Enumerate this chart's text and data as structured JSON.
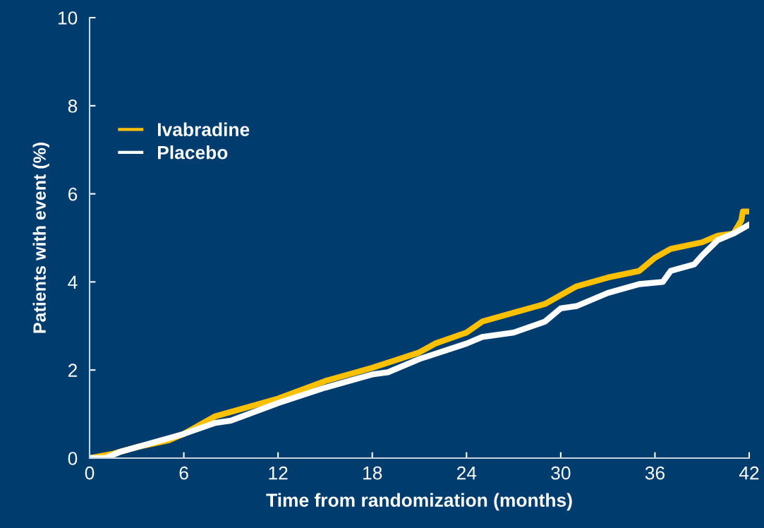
{
  "chart_data": {
    "type": "line",
    "xlabel": "Time from randomization (months)",
    "ylabel": "Patients with event (%)",
    "xlim": [
      0,
      42
    ],
    "xticks": [
      0,
      6,
      12,
      18,
      24,
      30,
      36,
      42
    ],
    "ylim": [
      0,
      10
    ],
    "yticks": [
      0,
      2,
      4,
      6,
      8,
      10
    ],
    "grid": false,
    "legend": "top left",
    "series": [
      {
        "name": "Ivabradine",
        "color": "#ffc000",
        "x": [
          0,
          1.5,
          3,
          5,
          6,
          8,
          9,
          12,
          15,
          18,
          21,
          22,
          24,
          25,
          27,
          29,
          30,
          31,
          33,
          35,
          36,
          37,
          39,
          40,
          41,
          41.5,
          41.6,
          42
        ],
        "values": [
          0,
          0.1,
          0.25,
          0.4,
          0.55,
          0.95,
          1.05,
          1.35,
          1.75,
          2.05,
          2.4,
          2.6,
          2.85,
          3.1,
          3.3,
          3.5,
          3.7,
          3.9,
          4.1,
          4.25,
          4.55,
          4.75,
          4.9,
          5.05,
          5.1,
          5.4,
          5.6,
          5.6
        ]
      },
      {
        "name": "Placebo",
        "color": "#ffffff",
        "x": [
          0,
          1,
          2,
          4,
          6,
          8,
          9,
          12,
          15,
          18,
          19,
          21,
          24,
          25,
          27,
          29,
          30,
          31,
          33,
          35,
          36.5,
          37,
          38.5,
          39,
          40,
          41,
          42
        ],
        "values": [
          0,
          0,
          0.15,
          0.35,
          0.55,
          0.8,
          0.85,
          1.25,
          1.6,
          1.9,
          1.95,
          2.25,
          2.6,
          2.75,
          2.85,
          3.1,
          3.4,
          3.45,
          3.75,
          3.95,
          4.0,
          4.25,
          4.4,
          4.6,
          4.95,
          5.1,
          5.3
        ]
      }
    ]
  }
}
